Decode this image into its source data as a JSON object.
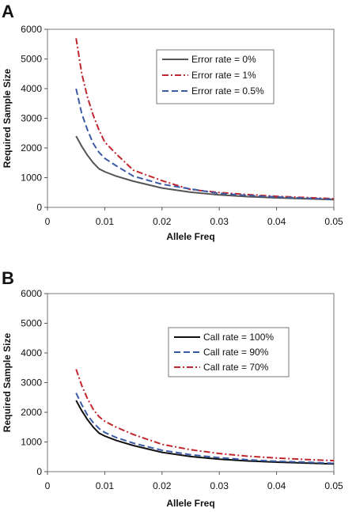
{
  "chart_data": [
    {
      "type": "line",
      "panel_label": "A",
      "xlabel": "Allele Freq",
      "ylabel": "Required Sample Size",
      "xlim": [
        0,
        0.05
      ],
      "ylim": [
        0,
        6000
      ],
      "x_ticks": [
        "0",
        "0.01",
        "0.02",
        "0.03",
        "0.04",
        "0.05"
      ],
      "y_ticks": [
        "0",
        "1000",
        "2000",
        "3000",
        "4000",
        "5000",
        "6000"
      ],
      "grid": false,
      "legend_position": "top-right",
      "series": [
        {
          "name": "Error rate = 0%",
          "color": "#555555",
          "dash": "solid",
          "x": [
            0.005,
            0.006,
            0.007,
            0.008,
            0.009,
            0.01,
            0.012,
            0.015,
            0.02,
            0.025,
            0.03,
            0.035,
            0.04,
            0.045,
            0.05
          ],
          "y": [
            2400,
            2050,
            1750,
            1500,
            1300,
            1200,
            1050,
            880,
            650,
            510,
            420,
            360,
            320,
            290,
            260
          ]
        },
        {
          "name": "Error rate = 1%",
          "color": "#c0272d",
          "dash": "dashdot",
          "x": [
            0.005,
            0.006,
            0.007,
            0.008,
            0.009,
            0.01,
            0.012,
            0.015,
            0.02,
            0.025,
            0.03,
            0.035,
            0.04,
            0.045,
            0.05
          ],
          "y": [
            5700,
            4500,
            3700,
            3100,
            2600,
            2200,
            1800,
            1250,
            900,
            600,
            500,
            430,
            370,
            330,
            290
          ]
        },
        {
          "name": "Error rate = 0.5%",
          "color": "#3b5ba5",
          "dash": "dashed",
          "x": [
            0.005,
            0.006,
            0.007,
            0.008,
            0.009,
            0.01,
            0.012,
            0.015,
            0.02,
            0.025,
            0.03,
            0.035,
            0.04,
            0.045,
            0.05
          ],
          "y": [
            4000,
            3150,
            2600,
            2150,
            1850,
            1650,
            1400,
            1050,
            780,
            620,
            470,
            400,
            350,
            310,
            270
          ]
        }
      ]
    },
    {
      "type": "line",
      "panel_label": "B",
      "xlabel": "Allele Freq",
      "ylabel": "Required Sample Size",
      "xlim": [
        0,
        0.05
      ],
      "ylim": [
        0,
        6000
      ],
      "x_ticks": [
        "0",
        "0.01",
        "0.02",
        "0.03",
        "0.04",
        "0.05"
      ],
      "y_ticks": [
        "0",
        "1000",
        "2000",
        "3000",
        "4000",
        "5000",
        "6000"
      ],
      "grid": false,
      "legend_position": "right",
      "series": [
        {
          "name": "Call rate = 100%",
          "color": "#111111",
          "dash": "solid",
          "x": [
            0.005,
            0.006,
            0.007,
            0.008,
            0.009,
            0.01,
            0.012,
            0.015,
            0.02,
            0.025,
            0.03,
            0.035,
            0.04,
            0.045,
            0.05
          ],
          "y": [
            2400,
            2050,
            1750,
            1500,
            1300,
            1200,
            1050,
            880,
            650,
            510,
            420,
            360,
            320,
            290,
            260
          ]
        },
        {
          "name": "Call rate = 90%",
          "color": "#3b5ba5",
          "dash": "dashed",
          "x": [
            0.005,
            0.006,
            0.007,
            0.008,
            0.009,
            0.01,
            0.012,
            0.015,
            0.02,
            0.025,
            0.03,
            0.035,
            0.04,
            0.045,
            0.05
          ],
          "y": [
            2650,
            2250,
            1900,
            1650,
            1450,
            1320,
            1150,
            960,
            720,
            570,
            470,
            400,
            350,
            320,
            280
          ]
        },
        {
          "name": "Call rate = 70%",
          "color": "#c0272d",
          "dash": "dashdot",
          "x": [
            0.005,
            0.006,
            0.007,
            0.008,
            0.009,
            0.01,
            0.012,
            0.015,
            0.02,
            0.025,
            0.03,
            0.035,
            0.04,
            0.045,
            0.05
          ],
          "y": [
            3450,
            2900,
            2450,
            2100,
            1850,
            1700,
            1500,
            1250,
            920,
            740,
            610,
            520,
            460,
            410,
            370
          ]
        }
      ]
    }
  ]
}
